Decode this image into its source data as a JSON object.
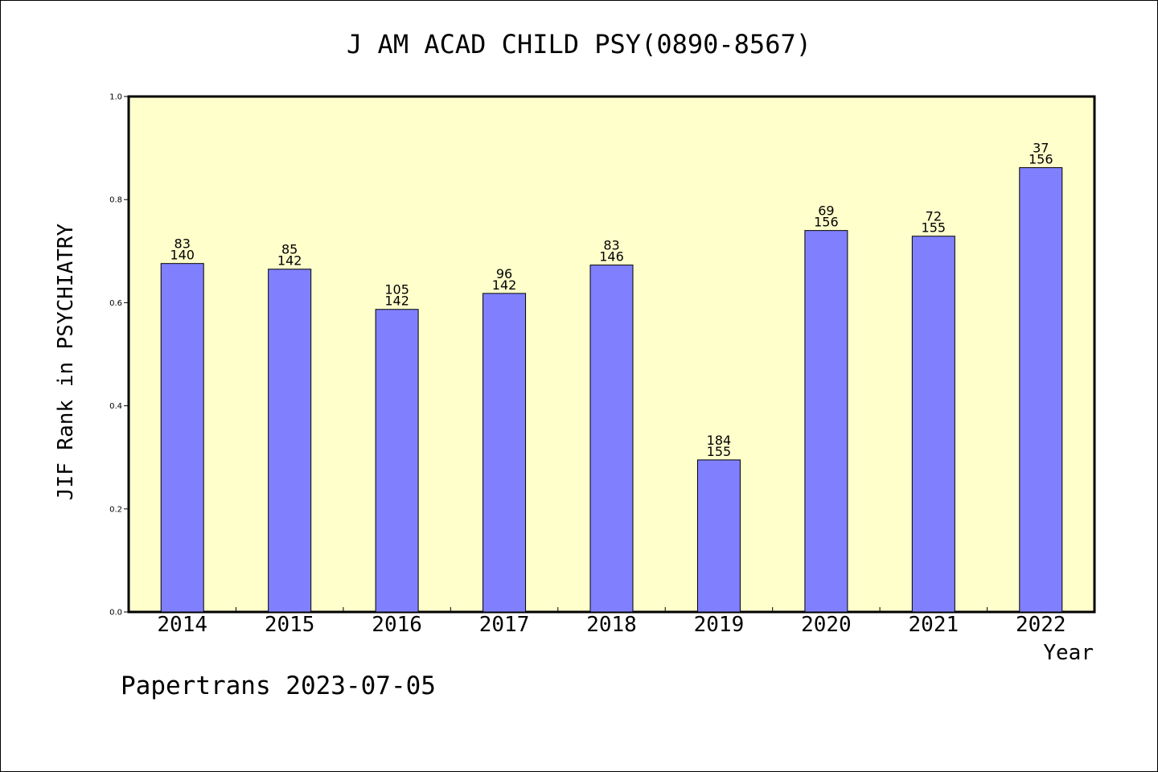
{
  "chart_data": {
    "type": "bar",
    "title": "J AM ACAD CHILD PSY(0890-8567)",
    "xlabel": "Year",
    "ylabel": "JIF Rank in PSYCHIATRY",
    "ylim": [
      0,
      1.0
    ],
    "yticks": [
      "0.0",
      "0.2",
      "0.4",
      "0.6",
      "0.8",
      "1.0"
    ],
    "grid": false,
    "categories": [
      "2014",
      "2015",
      "2016",
      "2017",
      "2018",
      "2019",
      "2020",
      "2021",
      "2022"
    ],
    "values": [
      0.676,
      0.665,
      0.587,
      0.618,
      0.673,
      0.295,
      0.74,
      0.729,
      0.862
    ],
    "labels_top": [
      "83",
      "85",
      "105",
      "96",
      "83",
      "184",
      "69",
      "72",
      "37"
    ],
    "labels_bottom": [
      "140",
      "142",
      "142",
      "142",
      "146",
      "155",
      "156",
      "155",
      "156"
    ],
    "colors": {
      "bar": "#8080ff",
      "plot_background": "#ffffcc"
    }
  },
  "footer": "Papertrans 2023-07-05"
}
